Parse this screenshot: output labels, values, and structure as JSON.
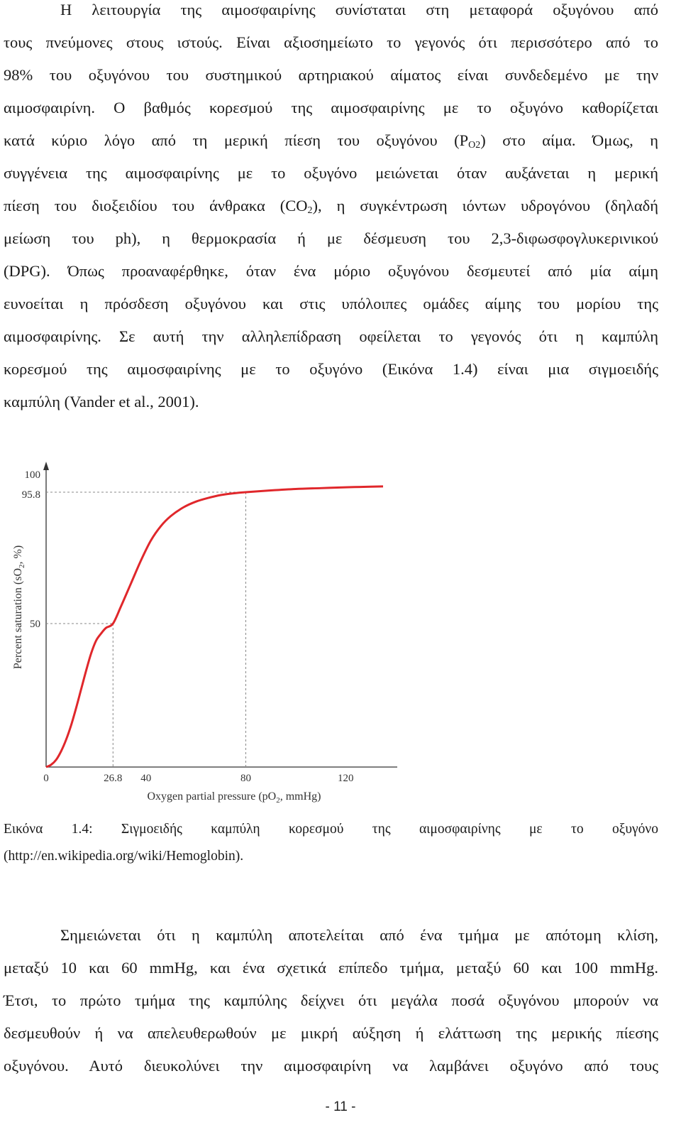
{
  "paragraph1": {
    "lines": [
      "Η λειτουργία της αιμοσφαιρίνης συνίσταται στη μεταφορά οξυγόνου από",
      "τους πνεύμονες στους ιστούς. Είναι αξιοσημείωτο το γεγονός ότι περισσότερο από το",
      "98% του οξυγόνου του συστημικού αρτηριακού αίματος είναι συνδεδεμένο με την",
      "αιμοσφαιρίνη. Ο βαθμός κορεσμού της αιμοσφαιρίνης με το οξυγόνο καθορίζεται",
      "κατά κύριο λόγο από τη μερική πίεση του οξυγόνου (P",
      "O2",
      ") στο αίμα. Όμως, η",
      "συγγένεια της αιμοσφαιρίνης με το οξυγόνο μειώνεται όταν αυξάνεται η μερική",
      "πίεση του διοξειδίου του άνθρακα (CO",
      "2",
      "), η συγκέντρωση ιόντων υδρογόνου (δηλαδή",
      "μείωση του ph), η θερμοκρασία ή με δέσμευση του 2,3-διφωσφογλυκερινικού",
      "(DPG). Όπως προαναφέρθηκε, όταν ένα μόριο οξυγόνου δεσμευτεί από μία αίμη",
      "ευνοείται η πρόσδεση οξυγόνου και στις υπόλοιπες ομάδες αίμης του μορίου της",
      "αιμοσφαιρίνης. Σε αυτή την αλληλεπίδραση οφείλεται το γεγονός ότι η καμπύλη",
      "κορεσμού της αιμοσφαιρίνης με το οξυγόνο (Εικόνα 1.4) είναι μια σιγμοειδής",
      "καμπύλη (Vander et al., 2001)."
    ]
  },
  "chart_data": {
    "type": "line",
    "title": "",
    "xlabel": "Oxygen partial pressure (pO",
    "xlabel_sub": "2",
    "xlabel_tail": ", mmHg)",
    "ylabel": "Percent saturation (sO",
    "ylabel_sub": "2",
    "ylabel_tail": ", %)",
    "xlim": [
      0,
      135
    ],
    "ylim": [
      0,
      100
    ],
    "xticks": [
      0,
      26.8,
      40,
      80,
      120
    ],
    "xtick_labels": [
      "0",
      "26.8",
      "40",
      "80",
      "120"
    ],
    "yticks": [
      50,
      95.8,
      100
    ],
    "ytick_labels": [
      "50",
      "95.8",
      "100"
    ],
    "reference_lines": [
      {
        "x": 26.8,
        "y": 50
      },
      {
        "x": 80,
        "y": 95.8
      }
    ],
    "series": [
      {
        "color": "#e0272b",
        "x": [
          0,
          2,
          4,
          6,
          8,
          10,
          12,
          14,
          16,
          18,
          20,
          22,
          24,
          26.8,
          30,
          34,
          38,
          42,
          46,
          50,
          55,
          60,
          65,
          70,
          75,
          80,
          90,
          100,
          110,
          120,
          130,
          135
        ],
        "y": [
          0,
          0.8,
          2.5,
          5.5,
          9.5,
          14.5,
          20.5,
          27,
          33.5,
          39.5,
          44,
          46.5,
          48.5,
          50,
          56,
          64,
          72,
          79,
          84,
          87.5,
          90.5,
          92.5,
          93.8,
          94.8,
          95.4,
          95.8,
          96.4,
          96.9,
          97.2,
          97.5,
          97.7,
          97.8
        ]
      }
    ]
  },
  "caption": {
    "line1": "Εικόνα 1.4: Σιγμοειδής καμπύλη κορεσμού της αιμοσφαιρίνης με το οξυγόνο",
    "line2": "(http://en.wikipedia.org/wiki/Hemoglobin)."
  },
  "paragraph2": {
    "lines": [
      "Σημειώνεται ότι η καμπύλη αποτελείται από ένα τμήμα με απότομη κλίση,",
      "μεταξύ 10 και 60 mmHg, και ένα σχετικά επίπεδο τμήμα, μεταξύ 60 και 100 mmHg.",
      "Έτσι, το πρώτο τμήμα της καμπύλης δείχνει ότι μεγάλα ποσά οξυγόνου μπορούν να",
      "δεσμευθούν ή να απελευθερωθούν με μικρή αύξηση ή ελάττωση της μερικής πίεσης",
      "οξυγόνου. Αυτό διευκολύνει την αιμοσφαιρίνη να λαμβάνει οξυγόνο από τους"
    ]
  },
  "footer": {
    "page_number": "- 11 -"
  }
}
